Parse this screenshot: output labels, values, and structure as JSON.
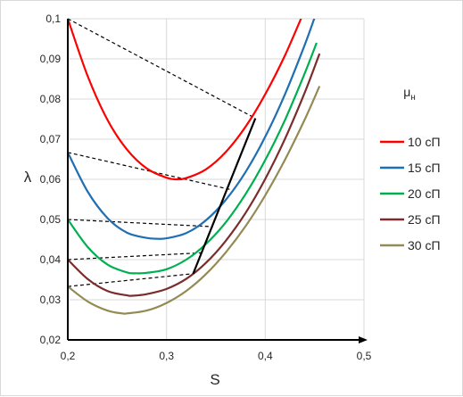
{
  "chart_data": {
    "type": "line",
    "xlabel": "S",
    "ylabel": "λ",
    "xlim": [
      0.2,
      0.5
    ],
    "ylim": [
      0.02,
      0.1
    ],
    "x_ticks": [
      "0,2",
      "0,3",
      "0,4",
      "0,5"
    ],
    "y_ticks": [
      "0,02",
      "0,03",
      "0,04",
      "0,05",
      "0,06",
      "0,07",
      "0,08",
      "0,09",
      "0,1"
    ],
    "grid": true,
    "legend_title": "μн",
    "legend_position": "right",
    "series": [
      {
        "name": "10 сП",
        "color": "#ff0000",
        "x": [
          0.2,
          0.22,
          0.24,
          0.26,
          0.28,
          0.3,
          0.31,
          0.32,
          0.34,
          0.36,
          0.38,
          0.4,
          0.42,
          0.44
        ],
        "y": [
          0.1,
          0.0858,
          0.0749,
          0.0674,
          0.0627,
          0.0604,
          0.06,
          0.0603,
          0.0625,
          0.0668,
          0.0731,
          0.0812,
          0.0909,
          0.1022
        ]
      },
      {
        "name": "15 сП",
        "color": "#1f6fb2",
        "x": [
          0.2,
          0.22,
          0.24,
          0.26,
          0.28,
          0.29,
          0.3,
          0.32,
          0.34,
          0.36,
          0.38,
          0.4,
          0.42,
          0.44,
          0.45
        ],
        "y": [
          0.0667,
          0.057,
          0.0504,
          0.0467,
          0.0454,
          0.0452,
          0.0453,
          0.0466,
          0.0498,
          0.0549,
          0.0618,
          0.0706,
          0.0812,
          0.0935,
          0.1003
        ]
      },
      {
        "name": "20 сП",
        "color": "#00b050",
        "x": [
          0.2,
          0.22,
          0.24,
          0.26,
          0.27,
          0.28,
          0.3,
          0.32,
          0.34,
          0.36,
          0.38,
          0.4,
          0.42,
          0.44,
          0.452
        ],
        "y": [
          0.05,
          0.0432,
          0.0388,
          0.0368,
          0.0366,
          0.0367,
          0.0376,
          0.04,
          0.0439,
          0.0493,
          0.0563,
          0.0648,
          0.0748,
          0.0864,
          0.094
        ]
      },
      {
        "name": "25 сП",
        "color": "#7b2c2c",
        "x": [
          0.2,
          0.22,
          0.24,
          0.26,
          0.265,
          0.28,
          0.3,
          0.32,
          0.34,
          0.36,
          0.38,
          0.4,
          0.42,
          0.44,
          0.455
        ],
        "y": [
          0.04,
          0.0352,
          0.0322,
          0.0311,
          0.031,
          0.0314,
          0.0327,
          0.0352,
          0.0392,
          0.0447,
          0.0516,
          0.0601,
          0.0701,
          0.0816,
          0.0913
        ]
      },
      {
        "name": "30 сП",
        "color": "#948a54",
        "x": [
          0.2,
          0.22,
          0.24,
          0.255,
          0.26,
          0.28,
          0.3,
          0.32,
          0.34,
          0.36,
          0.38,
          0.4,
          0.42,
          0.44,
          0.455
        ],
        "y": [
          0.0333,
          0.0296,
          0.0273,
          0.0266,
          0.0266,
          0.0273,
          0.0292,
          0.0322,
          0.0364,
          0.0418,
          0.0483,
          0.056,
          0.0649,
          0.0749,
          0.0832
        ]
      }
    ],
    "tangent_lines": [
      {
        "x": [
          0.2,
          0.39
        ],
        "y": [
          0.1,
          0.0752
        ]
      },
      {
        "x": [
          0.2,
          0.364
        ],
        "y": [
          0.0667,
          0.0575
        ]
      },
      {
        "x": [
          0.2,
          0.347
        ],
        "y": [
          0.05,
          0.0482
        ]
      },
      {
        "x": [
          0.2,
          0.336
        ],
        "y": [
          0.04,
          0.0417
        ]
      },
      {
        "x": [
          0.2,
          0.327
        ],
        "y": [
          0.0333,
          0.0365
        ]
      }
    ],
    "envelope_line": {
      "x": [
        0.327,
        0.39
      ],
      "y": [
        0.0365,
        0.0752
      ],
      "color": "#000000"
    }
  }
}
